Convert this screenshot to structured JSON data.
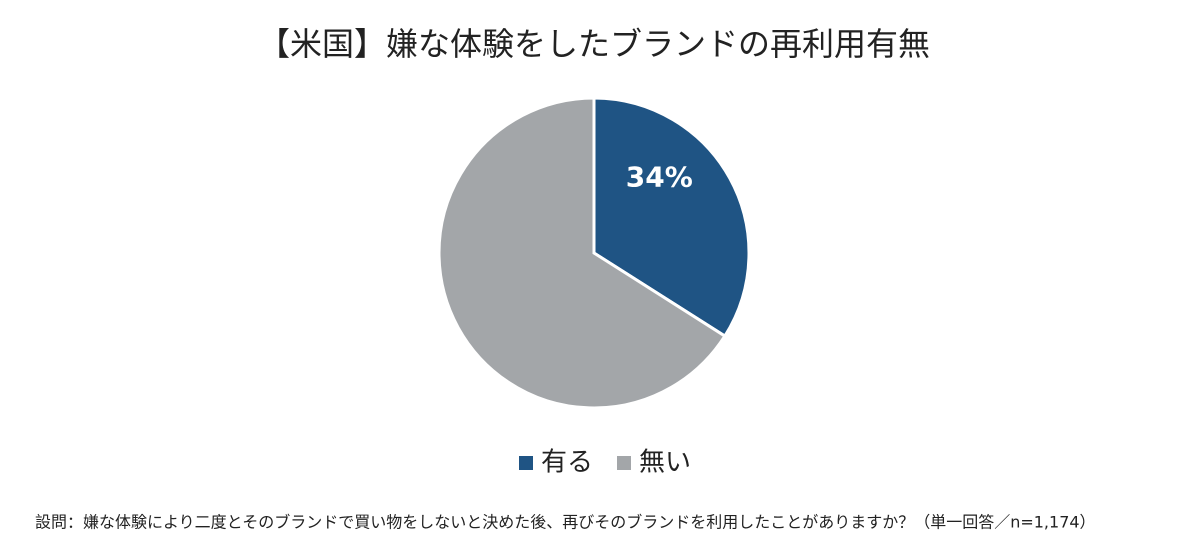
{
  "chart_data": {
    "type": "pie",
    "title": "【米国】嫌な体験をしたブランドの再利用有無",
    "categories": [
      "有る",
      "無い"
    ],
    "values": [
      34,
      66
    ],
    "value_labels": [
      "34%",
      null
    ],
    "colors": [
      "#1f5484",
      "#a3a6a9"
    ],
    "legend": "bottom",
    "footnote": "設問：嫌な体験により二度とそのブランドで買い物をしないと決めた後、再びそのブランドを利用したことがありますか？（単一回答／n=1,174）"
  }
}
